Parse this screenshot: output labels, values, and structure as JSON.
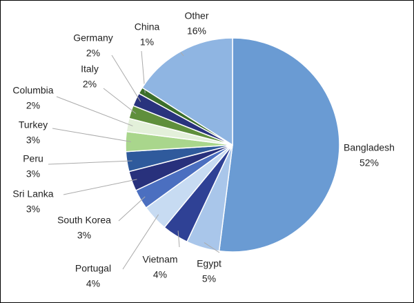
{
  "chart_data": {
    "type": "pie",
    "categories": [
      "Bangladesh",
      "Egypt",
      "Vietnam",
      "Portugal",
      "South Korea",
      "Sri Lanka",
      "Peru",
      "Turkey",
      "Columbia",
      "Italy",
      "Germany",
      "China",
      "Other"
    ],
    "values": [
      52,
      5,
      4,
      4,
      3,
      3,
      3,
      3,
      2,
      2,
      2,
      1,
      16
    ],
    "value_labels": [
      "52%",
      "5%",
      "4%",
      "4%",
      "3%",
      "3%",
      "3%",
      "3%",
      "2%",
      "2%",
      "2%",
      "1%",
      "16%"
    ],
    "colors": [
      "#6a9bd3",
      "#a9c6ea",
      "#2f4195",
      "#c7dbf2",
      "#4b6fc0",
      "#28317c",
      "#2f5a9c",
      "#a9d68c",
      "#e3f0da",
      "#5f8f3c",
      "#29337d",
      "#3c6f2b",
      "#8fb5e2"
    ]
  }
}
